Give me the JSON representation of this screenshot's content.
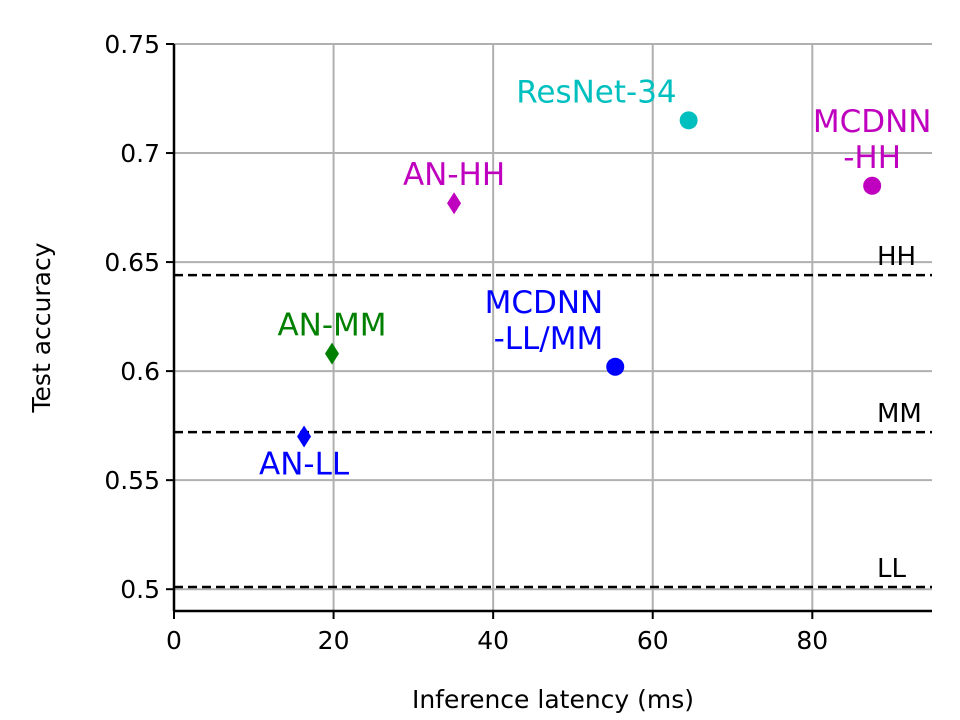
{
  "chart_data": {
    "type": "scatter",
    "xlabel": "Inference latency (ms)",
    "ylabel": "Test accuracy",
    "xlim": [
      0,
      95
    ],
    "ylim": [
      0.49,
      0.75
    ],
    "x_ticks": [
      {
        "value": 0,
        "label": "0"
      },
      {
        "value": 20,
        "label": "20"
      },
      {
        "value": 40,
        "label": "40"
      },
      {
        "value": 60,
        "label": "60"
      },
      {
        "value": 80,
        "label": "80"
      }
    ],
    "y_ticks": [
      {
        "value": 0.5,
        "label": "0.5"
      },
      {
        "value": 0.55,
        "label": "0.55"
      },
      {
        "value": 0.6,
        "label": "0.6"
      },
      {
        "value": 0.65,
        "label": "0.65"
      },
      {
        "value": 0.7,
        "label": "0.7"
      },
      {
        "value": 0.75,
        "label": "0.75"
      }
    ],
    "grid": true,
    "reference_lines": [
      {
        "label": "HH",
        "y": 0.644
      },
      {
        "label": "MM",
        "y": 0.572
      },
      {
        "label": "LL",
        "y": 0.501
      }
    ],
    "points": [
      {
        "label": "AN-LL",
        "x": 16.3,
        "y": 0.57,
        "marker": "diamond",
        "color": "#0000ff",
        "label_lines": [
          "AN-LL"
        ],
        "label_pos": "below"
      },
      {
        "label": "AN-MM",
        "x": 19.8,
        "y": 0.608,
        "marker": "diamond",
        "color": "#008000",
        "label_lines": [
          "AN-MM"
        ],
        "label_pos": "above"
      },
      {
        "label": "AN-HH",
        "x": 35.1,
        "y": 0.677,
        "marker": "diamond",
        "color": "#bf00bf",
        "label_lines": [
          "AN-HH"
        ],
        "label_pos": "above"
      },
      {
        "label": "MCDNN-LL/MM",
        "x": 55.3,
        "y": 0.602,
        "marker": "circle",
        "color": "#0000ff",
        "label_lines": [
          "MCDNN",
          "-LL/MM"
        ],
        "label_pos": "above-left"
      },
      {
        "label": "ResNet-34",
        "x": 64.5,
        "y": 0.715,
        "marker": "circle",
        "color": "#00bfbf",
        "label_lines": [
          "ResNet-34"
        ],
        "label_pos": "above-left"
      },
      {
        "label": "MCDNN-HH",
        "x": 87.5,
        "y": 0.685,
        "marker": "circle",
        "color": "#bf00bf",
        "label_lines": [
          "MCDNN",
          "-HH"
        ],
        "label_pos": "above"
      }
    ]
  }
}
